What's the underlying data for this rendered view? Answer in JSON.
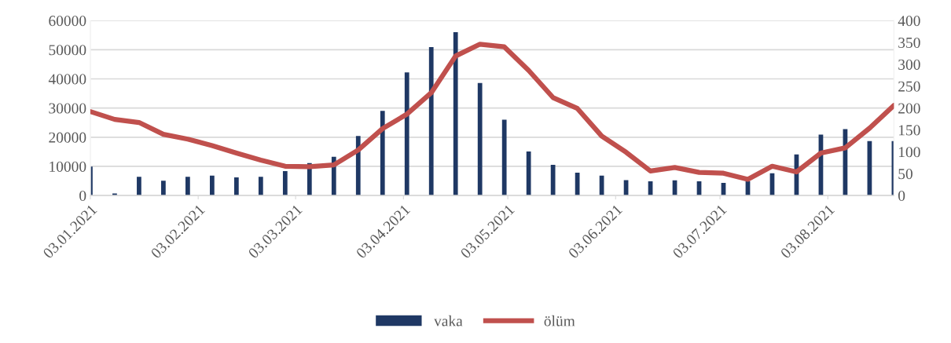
{
  "chart_data": {
    "type": "bar",
    "x": [
      "2021-01-03",
      "2021-01-10",
      "2021-01-17",
      "2021-01-24",
      "2021-01-31",
      "2021-02-07",
      "2021-02-14",
      "2021-02-21",
      "2021-02-28",
      "2021-03-07",
      "2021-03-14",
      "2021-03-21",
      "2021-03-28",
      "2021-04-04",
      "2021-04-11",
      "2021-04-18",
      "2021-04-25",
      "2021-05-02",
      "2021-05-09",
      "2021-05-16",
      "2021-05-23",
      "2021-05-30",
      "2021-06-06",
      "2021-06-13",
      "2021-06-20",
      "2021-06-27",
      "2021-07-04",
      "2021-07-11",
      "2021-07-18",
      "2021-07-25",
      "2021-08-01",
      "2021-08-08",
      "2021-08-15",
      "2021-08-22"
    ],
    "series": [
      {
        "name": "vaka",
        "color": "#1f3864",
        "values": [
          9900,
          700,
          6400,
          5100,
          6400,
          6800,
          6200,
          6400,
          8400,
          11100,
          13300,
          20400,
          29000,
          42200,
          50900,
          56000,
          38600,
          26000,
          15100,
          10500,
          7800,
          6800,
          5300,
          4900,
          5200,
          4900,
          4300,
          4900,
          7600,
          14100,
          20900,
          22800,
          18700,
          18700
        ]
      },
      {
        "name": "ölüm",
        "type": "line",
        "axis": "y2",
        "color": "#c0504d",
        "values": [
          192,
          174,
          167,
          140,
          129,
          114,
          97,
          81,
          67,
          66,
          70,
          104,
          153,
          186,
          235,
          319,
          346,
          340,
          286,
          224,
          199,
          136,
          99,
          56,
          64,
          53,
          51,
          37,
          67,
          54,
          97,
          109,
          154,
          206
        ]
      }
    ],
    "xlim": [
      "2021-01-03",
      "2021-08-22"
    ],
    "xticks": [
      {
        "value": "2021-01-03",
        "label": "03.01.2021"
      },
      {
        "value": "2021-02-03",
        "label": "03.02.2021"
      },
      {
        "value": "2021-03-03",
        "label": "03.03.2021"
      },
      {
        "value": "2021-04-03",
        "label": "03.04.2021"
      },
      {
        "value": "2021-05-03",
        "label": "03.05.2021"
      },
      {
        "value": "2021-06-03",
        "label": "03.06.2021"
      },
      {
        "value": "2021-07-03",
        "label": "03.07.2021"
      },
      {
        "value": "2021-08-03",
        "label": "03.08.2021"
      }
    ],
    "ylim": [
      0,
      60000
    ],
    "yticks": [
      0,
      10000,
      20000,
      30000,
      40000,
      50000,
      60000
    ],
    "y2lim": [
      0,
      400
    ],
    "y2ticks": [
      0,
      50,
      100,
      150,
      200,
      250,
      300,
      350,
      400
    ],
    "grid": "y",
    "legend": "bottom"
  }
}
